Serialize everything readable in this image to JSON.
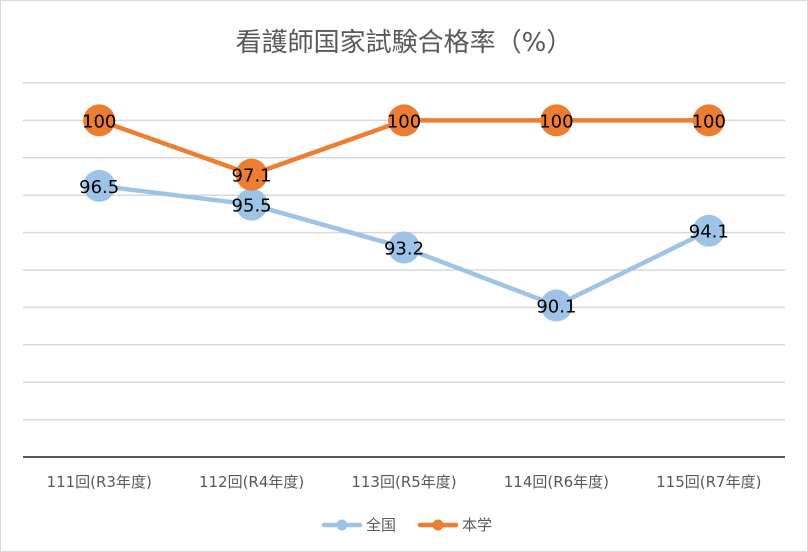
{
  "chart_data": {
    "type": "line",
    "title": "看護師国家試験合格率（%）",
    "categories": [
      "111回(R3年度)",
      "112回(R4年度)",
      "113回(R5年度)",
      "114回(R6年度)",
      "115回(R7年度)"
    ],
    "series": [
      {
        "name": "全国",
        "values": [
          96.5,
          95.5,
          93.2,
          90.1,
          94.1
        ],
        "color": "#9dc3e6",
        "labels": [
          "96.5",
          "95.5",
          "93.2",
          "90.1",
          "94.1"
        ]
      },
      {
        "name": "本学",
        "values": [
          100,
          97.1,
          100,
          100,
          100
        ],
        "color": "#ed7d31",
        "labels": [
          "100",
          "97.1",
          "100",
          "100",
          "100"
        ]
      }
    ],
    "ylim": [
      82,
      102
    ],
    "y_gridline_step": 2,
    "y_tick_labels_shown": false,
    "grid": true,
    "legend_position": "bottom",
    "gridline_color": "#d9d9d9",
    "axis_color": "#595959"
  }
}
